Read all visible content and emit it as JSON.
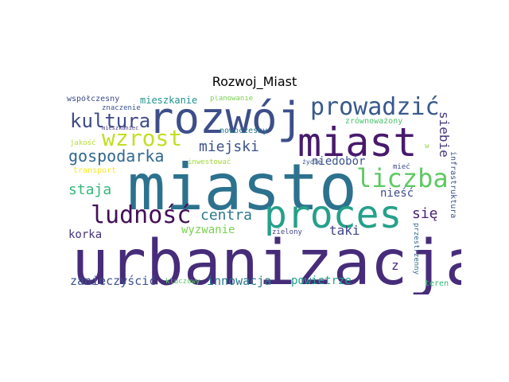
{
  "title": "Rozwoj_Miast",
  "words": [
    {
      "text": "urbanizacja",
      "color": "#472c7a"
    },
    {
      "text": "miasto",
      "color": "#2c728e"
    },
    {
      "text": "proces",
      "color": "#26a08a"
    },
    {
      "text": "rozwój",
      "color": "#3d4e8a"
    },
    {
      "text": "miast",
      "color": "#481a6c"
    },
    {
      "text": "prowadzić",
      "color": "#38598c"
    },
    {
      "text": "ludność",
      "color": "#440f57"
    },
    {
      "text": "liczba",
      "color": "#5ec962"
    },
    {
      "text": "wzrost",
      "color": "#c2df23"
    },
    {
      "text": "kultura",
      "color": "#3e4a89"
    },
    {
      "text": "gospodarka",
      "color": "#31688e"
    },
    {
      "text": "miejski",
      "color": "#3b528b"
    },
    {
      "text": "staja",
      "color": "#35b779"
    },
    {
      "text": "centra",
      "color": "#2a788e"
    },
    {
      "text": "się",
      "color": "#482374"
    },
    {
      "text": "siebie",
      "color": "#443983"
    },
    {
      "text": "wyzwanie",
      "color": "#7ad151"
    },
    {
      "text": "taki",
      "color": "#414487"
    },
    {
      "text": "niedobór",
      "color": "#3b528b"
    },
    {
      "text": "nieść",
      "color": "#3e4a89"
    },
    {
      "text": "korka",
      "color": "#46337e"
    },
    {
      "text": "innowacja",
      "color": "#2a788e"
    },
    {
      "text": "zanieczyścić",
      "color": "#3b528b"
    },
    {
      "text": "powietrze",
      "color": "#1fa088"
    },
    {
      "text": "z",
      "color": "#472c7a"
    },
    {
      "text": "mieszkanie",
      "color": "#20938c"
    },
    {
      "text": "współczesny",
      "color": "#3e4a89"
    },
    {
      "text": "zrównoważony",
      "color": "#4ac16d"
    },
    {
      "text": "nowoczesny",
      "color": "#2a788e"
    },
    {
      "text": "planowanie",
      "color": "#7ad151"
    },
    {
      "text": "znaczenie",
      "color": "#3b528b"
    },
    {
      "text": "jakość",
      "color": "#b5de2b"
    },
    {
      "text": "inwestować",
      "color": "#a0da39"
    },
    {
      "text": "transport",
      "color": "#fde725"
    },
    {
      "text": "zielony",
      "color": "#414487"
    },
    {
      "text": "życie",
      "color": "#3b528b"
    },
    {
      "text": "mieć",
      "color": "#3e4a89"
    },
    {
      "text": "kluczowy",
      "color": "#5ec962"
    },
    {
      "text": "teren",
      "color": "#35b779"
    },
    {
      "text": "infrastruktura",
      "color": "#3b528b"
    },
    {
      "text": "przestrzenny",
      "color": "#31688e"
    },
    {
      "text": "mieszkaniec",
      "color": "#46337e"
    },
    {
      "text": "w",
      "color": "#8fd744"
    }
  ]
}
